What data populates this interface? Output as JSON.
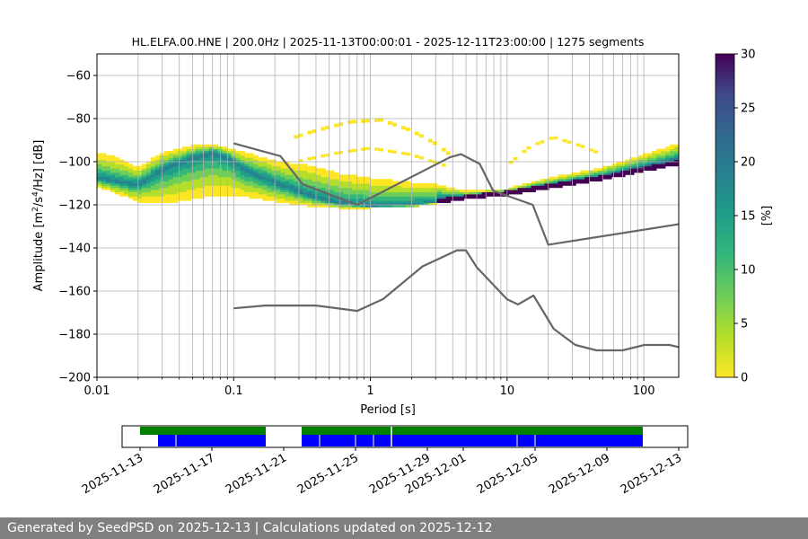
{
  "chart_data": [
    {
      "type": "heatmap",
      "title": "HL.ELFA.00.HNE | 200.0Hz | 2025-11-13T00:00:01 - 2025-12-11T23:00:00 | 1275 segments",
      "xlabel": "Period [s]",
      "ylabel_main": "Amplitude [m",
      "ylabel_sup1": "2",
      "ylabel_mid": "/s",
      "ylabel_sup2": "4",
      "ylabel_tail": "/Hz] [dB]",
      "x_scale": "log",
      "xlim": [
        0.01,
        180
      ],
      "ylim": [
        -200,
        -50
      ],
      "x_ticks": [
        0.01,
        0.1,
        1,
        10,
        100
      ],
      "x_tick_labels": [
        "0.01",
        "0.1",
        "1",
        "10",
        "100"
      ],
      "y_ticks": [
        -200,
        -180,
        -160,
        -140,
        -120,
        -100,
        -80,
        -60
      ],
      "y_tick_labels": [
        "−200",
        "−180",
        "−160",
        "−140",
        "−120",
        "−100",
        "−80",
        "−60"
      ],
      "grid": true,
      "colormap": "viridis_r",
      "colors": {
        "noise_model": "#666666",
        "grid": "#b0b0b0"
      },
      "colorbar": {
        "label": "[%]",
        "range": [
          0,
          30
        ],
        "ticks": [
          0,
          5,
          10,
          15,
          20,
          25,
          30
        ],
        "tick_labels": [
          "0",
          "5",
          "10",
          "15",
          "20",
          "25",
          "30"
        ]
      },
      "mode_curve": [
        [
          0.01,
          -108
        ],
        [
          0.015,
          -110
        ],
        [
          0.02,
          -111
        ],
        [
          0.03,
          -104
        ],
        [
          0.05,
          -98
        ],
        [
          0.07,
          -96
        ],
        [
          0.09,
          -98
        ],
        [
          0.12,
          -104
        ],
        [
          0.2,
          -110
        ],
        [
          0.35,
          -116
        ],
        [
          0.6,
          -120
        ],
        [
          1,
          -121
        ],
        [
          2,
          -120.5
        ],
        [
          3,
          -119
        ],
        [
          5,
          -117
        ],
        [
          10,
          -115
        ],
        [
          20,
          -112
        ],
        [
          50,
          -108
        ],
        [
          100,
          -104
        ],
        [
          180,
          -101
        ]
      ],
      "spread_low": [
        [
          0.01,
          -112
        ],
        [
          0.015,
          -116
        ],
        [
          0.02,
          -119
        ],
        [
          0.03,
          -120
        ],
        [
          0.05,
          -118
        ],
        [
          0.07,
          -116
        ],
        [
          0.1,
          -116
        ],
        [
          0.2,
          -119
        ],
        [
          0.35,
          -121
        ],
        [
          0.6,
          -122
        ],
        [
          1,
          -122
        ],
        [
          2,
          -121.5
        ],
        [
          3,
          -120
        ],
        [
          5,
          -118
        ],
        [
          10,
          -116
        ],
        [
          20,
          -113
        ],
        [
          50,
          -109
        ],
        [
          100,
          -105
        ],
        [
          180,
          -102
        ]
      ],
      "spread_high": [
        [
          0.01,
          -96
        ],
        [
          0.015,
          -99
        ],
        [
          0.02,
          -103
        ],
        [
          0.03,
          -96
        ],
        [
          0.05,
          -93
        ],
        [
          0.07,
          -92
        ],
        [
          0.09,
          -94
        ],
        [
          0.12,
          -96
        ],
        [
          0.2,
          -100
        ],
        [
          0.35,
          -102
        ],
        [
          0.6,
          -106
        ],
        [
          1,
          -108
        ],
        [
          2,
          -110
        ],
        [
          3,
          -111
        ],
        [
          5,
          -114
        ],
        [
          10,
          -113
        ],
        [
          20,
          -108
        ],
        [
          50,
          -103
        ],
        [
          100,
          -97
        ],
        [
          180,
          -92
        ]
      ],
      "outlier_bands": [
        {
          "pts": [
            [
              0.25,
              -90
            ],
            [
              0.4,
              -86
            ],
            [
              0.7,
              -82
            ],
            [
              1.2,
              -81
            ],
            [
              2,
              -86
            ],
            [
              3,
              -92
            ],
            [
              4,
              -98
            ]
          ],
          "thick": 2.5
        },
        {
          "pts": [
            [
              0.3,
              -100
            ],
            [
              0.6,
              -96
            ],
            [
              1,
              -94
            ],
            [
              2,
              -97
            ],
            [
              3.5,
              -102
            ]
          ],
          "thick": 2
        },
        {
          "pts": [
            [
              10,
              -102
            ],
            [
              15,
              -93
            ],
            [
              22,
              -89
            ],
            [
              35,
              -93
            ],
            [
              50,
              -97
            ]
          ],
          "thick": 2
        }
      ],
      "nhnm": [
        [
          0.1,
          -91.5
        ],
        [
          0.22,
          -97.4
        ],
        [
          0.32,
          -110.5
        ],
        [
          0.8,
          -120
        ],
        [
          3.8,
          -98
        ],
        [
          4.6,
          -96.5
        ],
        [
          6.3,
          -101
        ],
        [
          7.9,
          -113.5
        ],
        [
          15.4,
          -120
        ],
        [
          20,
          -138.5
        ],
        [
          180,
          -129
        ]
      ],
      "nlnm": [
        [
          0.1,
          -168
        ],
        [
          0.17,
          -166.7
        ],
        [
          0.4,
          -166.7
        ],
        [
          0.8,
          -169.2
        ],
        [
          1.24,
          -163.7
        ],
        [
          2.4,
          -148.6
        ],
        [
          4.3,
          -141.1
        ],
        [
          5,
          -141.1
        ],
        [
          6,
          -149
        ],
        [
          10,
          -163.8
        ],
        [
          12,
          -166.2
        ],
        [
          15.6,
          -162.1
        ],
        [
          21.9,
          -177.5
        ],
        [
          31.6,
          -185
        ],
        [
          45,
          -187.5
        ],
        [
          70,
          -187.5
        ],
        [
          101,
          -185
        ],
        [
          154,
          -185
        ],
        [
          180,
          -186
        ]
      ]
    },
    {
      "type": "timeline",
      "tick_labels": [
        "2025-11-13",
        "2025-11-17",
        "2025-11-21",
        "2025-11-25",
        "2025-11-29",
        "2025-12-01",
        "2025-12-05",
        "2025-12-09",
        "2025-12-13"
      ],
      "axis_start": "2025-11-12",
      "axis_end": "2025-12-13",
      "colors": {
        "data": "#0000ff",
        "psd": "#008000"
      },
      "green_spans": [
        [
          "2025-11-13",
          "2025-11-20"
        ],
        [
          "2025-11-22",
          "2025-12-11"
        ]
      ],
      "blue_spans": [
        [
          "2025-11-14",
          "2025-11-20"
        ],
        [
          "2025-11-22",
          "2025-12-11"
        ]
      ],
      "gaps": [
        "2025-11-15",
        "2025-11-23",
        "2025-11-25",
        "2025-11-26",
        "2025-12-04",
        "2025-12-05"
      ],
      "marker": "2025-11-27"
    }
  ],
  "footer": {
    "text": "Generated by SeedPSD on 2025-12-13 | Calculations updated on 2025-12-12"
  }
}
